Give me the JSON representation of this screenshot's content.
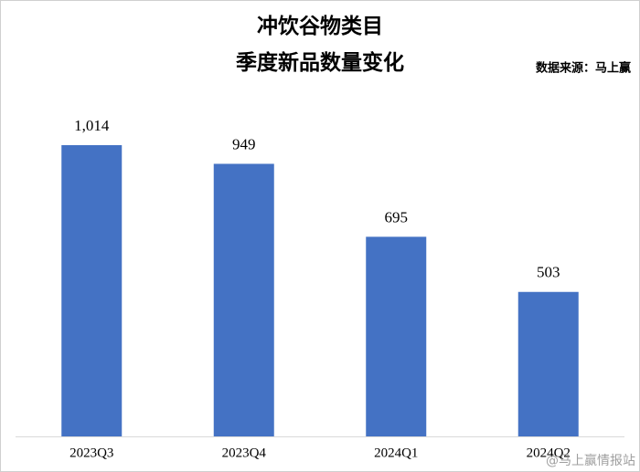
{
  "chart_data": {
    "type": "bar",
    "title": "冲饮谷物类目",
    "subtitle": "季度新品数量变化",
    "source": "数据来源：马上赢",
    "watermark": "@马上赢情报站",
    "categories": [
      "2023Q3",
      "2023Q4",
      "2024Q1",
      "2024Q2"
    ],
    "values": [
      1014,
      949,
      695,
      503
    ],
    "value_labels": [
      "1,014",
      "949",
      "695",
      "503"
    ],
    "color": "#4472c4"
  }
}
